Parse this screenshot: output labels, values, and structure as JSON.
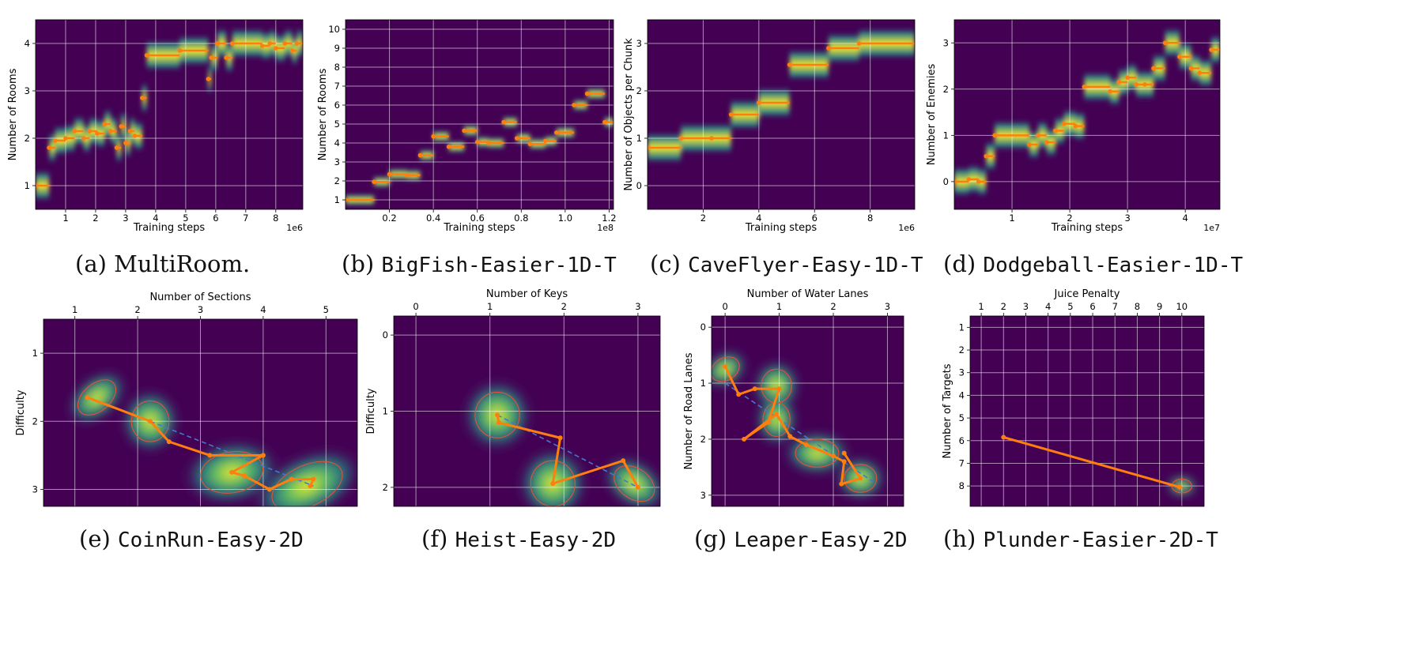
{
  "colors": {
    "heat_low": "#440154",
    "heat_mid": "#21918c",
    "heat_high": "#fde725",
    "marker": "#ff7f0e",
    "dashed": "#4477cc"
  },
  "captions": [
    {
      "label": "(a)",
      "name": "MultiRoom.",
      "mono": false
    },
    {
      "label": "(b)",
      "name": "BigFish-Easier-1D-T",
      "mono": true
    },
    {
      "label": "(c)",
      "name": "CaveFlyer-Easy-1D-T",
      "mono": true
    },
    {
      "label": "(d)",
      "name": "Dodgeball-Easier-1D-T",
      "mono": true
    },
    {
      "label": "(e)",
      "name": "CoinRun-Easy-2D",
      "mono": true
    },
    {
      "label": "(f)",
      "name": "Heist-Easy-2D",
      "mono": true
    },
    {
      "label": "(g)",
      "name": "Leaper-Easy-2D",
      "mono": true
    },
    {
      "label": "(h)",
      "name": "Plunder-Easier-2D-T",
      "mono": true
    }
  ],
  "chart_data": [
    {
      "type": "heatmap",
      "variant": "1d",
      "xlabel": "Training steps",
      "ylabel": "Number of Rooms",
      "offset_text": "1e6",
      "xlim": [
        0,
        8.9
      ],
      "ylim": [
        0.5,
        4.5
      ],
      "xticks": [
        1,
        2,
        3,
        4,
        5,
        6,
        7,
        8
      ],
      "xticklabels": [
        "1",
        "2",
        "3",
        "4",
        "5",
        "6",
        "7",
        "8"
      ],
      "yticks": [
        1,
        2,
        3,
        4
      ],
      "yticklabels": [
        "1",
        "2",
        "3",
        "4"
      ],
      "segments": [
        [
          0,
          0.45,
          1.0
        ],
        [
          0.45,
          0.65,
          1.8
        ],
        [
          0.65,
          1.0,
          1.95
        ],
        [
          1.0,
          1.3,
          2.0
        ],
        [
          1.3,
          1.6,
          2.15
        ],
        [
          1.6,
          1.8,
          2.0
        ],
        [
          1.8,
          2.05,
          2.15
        ],
        [
          2.05,
          2.3,
          2.1
        ],
        [
          2.3,
          2.5,
          2.3
        ],
        [
          2.5,
          2.7,
          2.15
        ],
        [
          2.7,
          2.85,
          1.8
        ],
        [
          2.85,
          3.0,
          2.25
        ],
        [
          3.0,
          3.15,
          1.9
        ],
        [
          3.15,
          3.3,
          2.15
        ],
        [
          3.3,
          3.55,
          2.05
        ],
        [
          3.55,
          3.7,
          2.85
        ],
        [
          3.7,
          4.8,
          3.75
        ],
        [
          4.8,
          5.75,
          3.85
        ],
        [
          5.75,
          5.85,
          3.25
        ],
        [
          5.85,
          6.05,
          3.7
        ],
        [
          6.05,
          6.35,
          4.0
        ],
        [
          6.35,
          6.55,
          3.7
        ],
        [
          6.55,
          7.55,
          4.0
        ],
        [
          7.55,
          7.8,
          3.95
        ],
        [
          7.8,
          8.0,
          4.0
        ],
        [
          8.0,
          8.3,
          3.9
        ],
        [
          8.3,
          8.55,
          4.0
        ],
        [
          8.55,
          8.7,
          3.85
        ],
        [
          8.7,
          8.9,
          4.0
        ]
      ]
    },
    {
      "type": "heatmap",
      "variant": "1d",
      "xlabel": "Training steps",
      "ylabel": "Number of Rooms",
      "offset_text": "1e8",
      "xlim": [
        0,
        1.22
      ],
      "ylim": [
        0.5,
        10.5
      ],
      "xticks": [
        0.2,
        0.4,
        0.6,
        0.8,
        1.0,
        1.2
      ],
      "xticklabels": [
        "0.2",
        "0.4",
        "0.6",
        "0.8",
        "1.0",
        "1.2"
      ],
      "yticks": [
        1,
        2,
        3,
        4,
        5,
        6,
        7,
        8,
        9,
        10
      ],
      "yticklabels": [
        "1",
        "2",
        "3",
        "4",
        "5",
        "6",
        "7",
        "8",
        "9",
        "10"
      ],
      "segments": [
        [
          0,
          0.13,
          1.0
        ],
        [
          0.13,
          0.2,
          1.95
        ],
        [
          0.2,
          0.28,
          2.35
        ],
        [
          0.28,
          0.34,
          2.3
        ],
        [
          0.34,
          0.4,
          3.35
        ],
        [
          0.4,
          0.47,
          4.35
        ],
        [
          0.47,
          0.54,
          3.8
        ],
        [
          0.54,
          0.6,
          4.65
        ],
        [
          0.6,
          0.65,
          4.05
        ],
        [
          0.65,
          0.72,
          4.0
        ],
        [
          0.72,
          0.78,
          5.1
        ],
        [
          0.78,
          0.84,
          4.25
        ],
        [
          0.84,
          0.91,
          3.95
        ],
        [
          0.91,
          0.96,
          4.1
        ],
        [
          0.96,
          1.04,
          4.55
        ],
        [
          1.04,
          1.1,
          6.0
        ],
        [
          1.1,
          1.18,
          6.6
        ],
        [
          1.18,
          1.22,
          5.1
        ]
      ]
    },
    {
      "type": "heatmap",
      "variant": "1d",
      "xlabel": "Training steps",
      "ylabel": "Number of Objects per Chunk",
      "offset_text": "1e6",
      "xlim": [
        0,
        9.6
      ],
      "ylim": [
        -0.5,
        3.5
      ],
      "xticks": [
        2,
        4,
        6,
        8
      ],
      "xticklabels": [
        "2",
        "4",
        "6",
        "8"
      ],
      "yticks": [
        0,
        1,
        2,
        3
      ],
      "yticklabels": [
        "0",
        "1",
        "2",
        "3"
      ],
      "segments": [
        [
          0,
          1.2,
          0.8
        ],
        [
          1.2,
          2.3,
          1.0
        ],
        [
          2.3,
          3.0,
          1.0
        ],
        [
          3.0,
          4.0,
          1.5
        ],
        [
          4.0,
          5.1,
          1.75
        ],
        [
          5.1,
          6.5,
          2.55
        ],
        [
          6.5,
          7.6,
          2.9
        ],
        [
          7.6,
          9.6,
          3.0
        ]
      ]
    },
    {
      "type": "heatmap",
      "variant": "1d",
      "xlabel": "Training steps",
      "ylabel": "Number of Enemies",
      "offset_text": "1e7",
      "xlim": [
        0,
        4.6
      ],
      "ylim": [
        -0.6,
        3.5
      ],
      "xticks": [
        1,
        2,
        3,
        4
      ],
      "xticklabels": [
        "1",
        "2",
        "3",
        "4"
      ],
      "yticks": [
        0,
        1,
        2,
        3
      ],
      "yticklabels": [
        "0",
        "1",
        "2",
        "3"
      ],
      "segments": [
        [
          0,
          0.25,
          0.0
        ],
        [
          0.25,
          0.42,
          0.05
        ],
        [
          0.42,
          0.55,
          0.0
        ],
        [
          0.55,
          0.7,
          0.55
        ],
        [
          0.7,
          1.3,
          1.0
        ],
        [
          1.3,
          1.45,
          0.8
        ],
        [
          1.45,
          1.6,
          1.0
        ],
        [
          1.6,
          1.75,
          0.85
        ],
        [
          1.75,
          1.9,
          1.1
        ],
        [
          1.9,
          2.1,
          1.25
        ],
        [
          2.1,
          2.25,
          1.2
        ],
        [
          2.25,
          2.7,
          2.05
        ],
        [
          2.7,
          2.85,
          1.95
        ],
        [
          2.85,
          3.0,
          2.15
        ],
        [
          3.0,
          3.15,
          2.25
        ],
        [
          3.15,
          3.3,
          2.1
        ],
        [
          3.3,
          3.45,
          2.1
        ],
        [
          3.45,
          3.65,
          2.45
        ],
        [
          3.65,
          3.9,
          3.0
        ],
        [
          3.9,
          4.1,
          2.7
        ],
        [
          4.1,
          4.25,
          2.45
        ],
        [
          4.25,
          4.45,
          2.35
        ],
        [
          4.45,
          4.6,
          2.85
        ]
      ]
    },
    {
      "type": "heatmap",
      "variant": "2d",
      "xlabel": "Number of Sections",
      "ylabel": "Difficulty",
      "xlabel_position": "top",
      "xlim": [
        0.5,
        5.5
      ],
      "ylim": [
        0.5,
        3.25
      ],
      "y_inverted": true,
      "xticks": [
        1,
        2,
        3,
        4,
        5
      ],
      "xticklabels": [
        "1",
        "2",
        "3",
        "4",
        "5"
      ],
      "yticks": [
        1,
        2,
        3
      ],
      "yticklabels": [
        "1",
        "2",
        "3"
      ],
      "path": [
        [
          1.2,
          1.65
        ],
        [
          2.2,
          2.0
        ],
        [
          2.5,
          2.3
        ],
        [
          3.15,
          2.5
        ],
        [
          4.0,
          2.5
        ],
        [
          3.5,
          2.75
        ],
        [
          3.7,
          2.8
        ],
        [
          4.1,
          3.0
        ],
        [
          4.45,
          2.85
        ],
        [
          4.8,
          2.85
        ],
        [
          4.75,
          2.95
        ]
      ],
      "ellipses": [
        [
          1.35,
          1.65,
          0.35,
          0.2,
          -40
        ],
        [
          2.2,
          2.0,
          0.3,
          0.3,
          0
        ],
        [
          3.5,
          2.75,
          0.5,
          0.3,
          -10
        ],
        [
          4.7,
          2.95,
          0.6,
          0.3,
          -25
        ]
      ],
      "dashed": [
        [
          2.2,
          2.0
        ],
        [
          4.8,
          2.95
        ]
      ]
    },
    {
      "type": "heatmap",
      "variant": "2d",
      "xlabel": "Number of Keys",
      "ylabel": "Difficulty",
      "xlabel_position": "top",
      "xlim": [
        -0.3,
        3.3
      ],
      "ylim": [
        -0.25,
        2.25
      ],
      "y_inverted": true,
      "xticks": [
        0,
        1,
        2,
        3
      ],
      "xticklabels": [
        "0",
        "1",
        "2",
        "3"
      ],
      "yticks": [
        0,
        1,
        2
      ],
      "yticklabels": [
        "0",
        "1",
        "2"
      ],
      "path": [
        [
          1.1,
          1.05
        ],
        [
          1.12,
          1.15
        ],
        [
          1.95,
          1.35
        ],
        [
          1.85,
          1.95
        ],
        [
          2.8,
          1.65
        ],
        [
          3.0,
          2.0
        ]
      ],
      "ellipses": [
        [
          1.1,
          1.05,
          0.3,
          0.3,
          0
        ],
        [
          1.85,
          1.95,
          0.3,
          0.3,
          0
        ],
        [
          2.95,
          1.95,
          0.3,
          0.2,
          35
        ]
      ],
      "dashed": [
        [
          1.1,
          1.05
        ],
        [
          3.0,
          2.0
        ]
      ]
    },
    {
      "type": "heatmap",
      "variant": "2d",
      "xlabel": "Number of Water Lanes",
      "ylabel": "Number of Road Lanes",
      "xlabel_position": "top",
      "xlim": [
        -0.25,
        3.3
      ],
      "ylim": [
        -0.2,
        3.2
      ],
      "y_inverted": true,
      "xticks": [
        0,
        1,
        2,
        3
      ],
      "xticklabels": [
        "0",
        "1",
        "2",
        "3"
      ],
      "yticks": [
        0,
        1,
        2,
        3
      ],
      "yticklabels": [
        "0",
        "1",
        "2",
        "3"
      ],
      "path": [
        [
          0.0,
          0.7
        ],
        [
          0.25,
          1.2
        ],
        [
          0.55,
          1.1
        ],
        [
          1.0,
          1.1
        ],
        [
          0.8,
          1.7
        ],
        [
          0.35,
          2.0
        ],
        [
          0.95,
          1.55
        ],
        [
          1.2,
          1.95
        ],
        [
          1.5,
          2.1
        ],
        [
          2.0,
          2.3
        ],
        [
          2.2,
          2.4
        ],
        [
          2.15,
          2.8
        ],
        [
          2.5,
          2.7
        ],
        [
          2.2,
          2.25
        ]
      ],
      "ellipses": [
        [
          0.0,
          0.75,
          0.28,
          0.2,
          -30
        ],
        [
          0.95,
          1.05,
          0.28,
          0.3,
          0
        ],
        [
          0.95,
          1.65,
          0.25,
          0.3,
          0
        ],
        [
          1.7,
          2.25,
          0.4,
          0.25,
          0
        ],
        [
          2.5,
          2.7,
          0.3,
          0.25,
          0
        ]
      ],
      "dashed": [
        [
          0.0,
          1.0
        ],
        [
          2.8,
          2.8
        ]
      ]
    },
    {
      "type": "heatmap",
      "variant": "2d",
      "xlabel": "Juice Penalty",
      "ylabel": "Number of Targets",
      "xlabel_position": "top",
      "xlim": [
        0.5,
        11.0
      ],
      "ylim": [
        0.5,
        8.9
      ],
      "y_inverted": true,
      "xticks": [
        1,
        2,
        3,
        4,
        5,
        6,
        7,
        8,
        9,
        10
      ],
      "xticklabels": [
        "1",
        "2",
        "3",
        "4",
        "5",
        "6",
        "7",
        "8",
        "9",
        "10"
      ],
      "yticks": [
        1,
        2,
        3,
        4,
        5,
        6,
        7,
        8
      ],
      "yticklabels": [
        "1",
        "2",
        "3",
        "4",
        "5",
        "6",
        "7",
        "8"
      ],
      "path": [
        [
          2.0,
          5.85
        ],
        [
          9.9,
          8.05
        ]
      ],
      "ellipses": [
        [
          10.0,
          8.0,
          0.45,
          0.3,
          0
        ]
      ],
      "dashed": [
        [
          2.0,
          5.85
        ],
        [
          9.9,
          8.05
        ]
      ]
    }
  ]
}
